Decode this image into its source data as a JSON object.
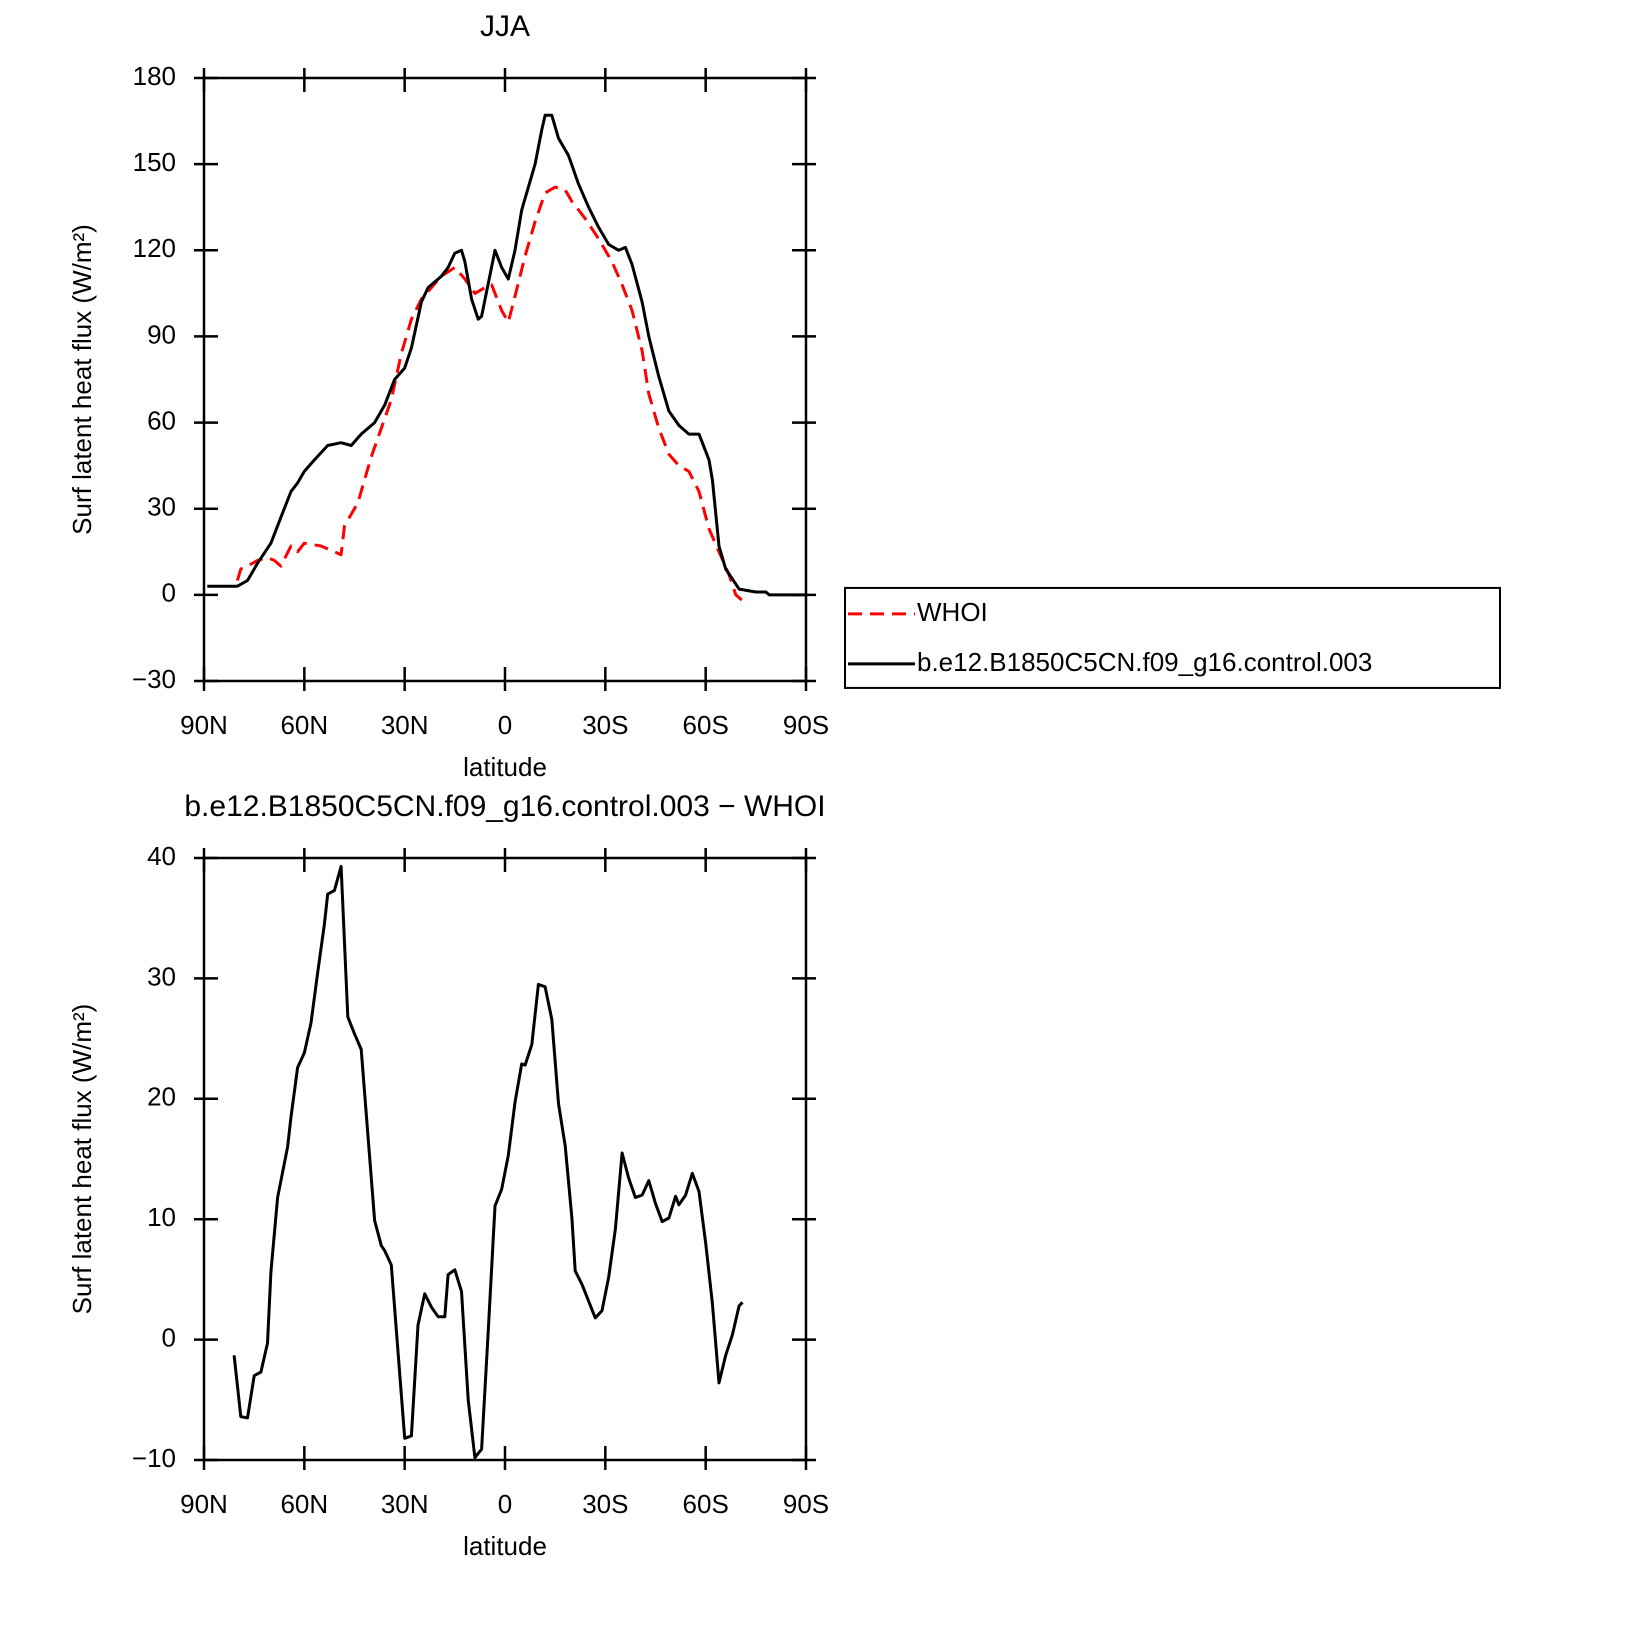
{
  "chart_data": [
    {
      "type": "line",
      "title": "JJA",
      "xlabel": "latitude",
      "ylabel": "Surf latent heat flux (W/m²)",
      "xlim": [
        90,
        -90
      ],
      "xticks": [
        {
          "value": 90,
          "label": "90N"
        },
        {
          "value": 60,
          "label": "60N"
        },
        {
          "value": 30,
          "label": "30N"
        },
        0,
        {
          "value": -30,
          "label": "30S"
        },
        {
          "value": -60,
          "label": "60S"
        },
        {
          "value": -90,
          "label": "90S"
        }
      ],
      "ylim": [
        -30,
        180
      ],
      "yticks": [
        -30,
        0,
        30,
        60,
        90,
        120,
        150,
        180
      ],
      "legend": "right",
      "series": [
        {
          "name": "WHOI",
          "color": "#ff0000",
          "line_style": "dashed",
          "x": [
            80,
            79,
            77,
            74,
            71,
            69,
            67,
            64,
            62,
            60,
            55,
            49,
            48,
            44,
            40,
            37,
            34,
            31,
            28,
            25,
            22,
            19,
            15,
            12,
            9,
            6,
            4,
            1,
            -1,
            -3,
            -6,
            -9,
            -12,
            -15,
            -18,
            -20,
            -24,
            -28,
            -32,
            -35,
            -38,
            -41,
            -43,
            -46,
            -49,
            -52,
            -55,
            -58,
            -61,
            -64,
            -67,
            -69,
            -71
          ],
          "values": [
            5,
            9,
            10,
            12,
            13,
            12,
            10,
            17,
            15,
            18,
            17,
            14,
            24,
            32,
            48,
            58,
            68,
            84,
            96,
            103,
            107,
            111,
            114,
            110,
            105,
            107,
            108,
            99,
            95,
            104,
            118,
            130,
            140,
            142,
            141,
            137,
            131,
            124,
            116,
            108,
            99,
            85,
            70,
            58,
            49,
            45,
            43,
            36,
            23,
            15,
            7,
            0,
            -2
          ]
        },
        {
          "name": "b.e12.B1850C5CN.f09_g16.control.003",
          "color": "#000000",
          "line_style": "solid",
          "x": [
            89,
            80,
            77,
            74,
            70,
            67,
            64,
            62,
            60,
            57,
            53,
            49,
            46,
            43,
            39,
            36,
            33,
            30,
            28,
            25,
            23,
            19,
            17,
            15,
            13,
            12,
            10,
            8,
            7,
            3,
            1,
            -1,
            -3,
            -5,
            -9,
            -11,
            -12,
            -14,
            -16,
            -19,
            -22,
            -25,
            -28,
            -31,
            -34,
            -36,
            -38,
            -41,
            -43,
            -46,
            -49,
            -52,
            -55,
            -58,
            -61,
            -62,
            -64,
            -66,
            -70,
            -75,
            -78,
            -79,
            -90
          ],
          "values": [
            3,
            3,
            5,
            11,
            18,
            27,
            36,
            39,
            43,
            47,
            52,
            53,
            52,
            56,
            60,
            66,
            75,
            79,
            86,
            102,
            107,
            111,
            114,
            119,
            120,
            116,
            103,
            96,
            97,
            120,
            114,
            110,
            120,
            134,
            150,
            162,
            167,
            167,
            159,
            153,
            143,
            135,
            128,
            122,
            120,
            121,
            115,
            102,
            90,
            76,
            64,
            59,
            56,
            56,
            47,
            40,
            17,
            9,
            2,
            1,
            1,
            0,
            0
          ]
        }
      ]
    },
    {
      "type": "line",
      "title": "b.e12.B1850C5CN.f09_g16.control.003 − WHOI",
      "xlabel": "latitude",
      "ylabel": "Surf latent heat flux (W/m²)",
      "xlim": [
        90,
        -90
      ],
      "xticks": [
        {
          "value": 90,
          "label": "90N"
        },
        {
          "value": 60,
          "label": "60N"
        },
        {
          "value": 30,
          "label": "30N"
        },
        0,
        {
          "value": -30,
          "label": "30S"
        },
        {
          "value": -60,
          "label": "60S"
        },
        {
          "value": -90,
          "label": "90S"
        }
      ],
      "ylim": [
        -10,
        40
      ],
      "yticks": [
        -10,
        0,
        10,
        20,
        30,
        40
      ],
      "color": "#000000",
      "x": [
        81,
        79,
        77,
        75,
        73,
        71,
        70,
        68,
        65,
        64,
        62,
        60,
        58,
        56,
        54,
        53,
        51,
        49,
        47,
        45,
        43,
        41,
        39,
        37,
        36,
        34,
        32,
        30,
        28,
        26,
        24,
        22,
        20,
        18,
        17,
        15,
        13,
        11,
        9,
        7,
        5,
        3,
        1,
        -1,
        -3,
        -5,
        -6,
        -8,
        -10,
        -12,
        -14,
        -16,
        -18,
        -20,
        -21,
        -23,
        -25,
        -27,
        -29,
        -31,
        -33,
        -35,
        -37,
        -39,
        -41,
        -43,
        -45,
        -47,
        -49,
        -51,
        -52,
        -54,
        -56,
        -58,
        -60,
        -62,
        -64,
        -66,
        -68,
        -70,
        -71
      ],
      "values": [
        -1.3,
        -6.4,
        -6.5,
        -3,
        -2.7,
        -0.3,
        5.6,
        11.8,
        16,
        18.5,
        22.6,
        23.8,
        26.3,
        30.5,
        34.5,
        37,
        37.3,
        39.3,
        26.8,
        25.4,
        24.1,
        17,
        9.9,
        7.8,
        7.4,
        6.2,
        -1,
        -8.2,
        -8,
        1.2,
        3.8,
        2.7,
        1.9,
        1.9,
        5.4,
        5.8,
        4,
        -5,
        -9.8,
        -9.1,
        0.8,
        11.1,
        12.5,
        15.3,
        19.7,
        22.9,
        22.8,
        24.5,
        29.5,
        29.3,
        26.6,
        19.6,
        16.1,
        10.1,
        5.7,
        4.6,
        3.2,
        1.8,
        2.4,
        5.2,
        9.2,
        15.5,
        13.4,
        11.8,
        12,
        13.2,
        11.3,
        9.8,
        10.1,
        11.9,
        11.2,
        12,
        13.8,
        12.3,
        8,
        3,
        -3.6,
        -1.3,
        0.4,
        2.8,
        3.1
      ]
    }
  ]
}
